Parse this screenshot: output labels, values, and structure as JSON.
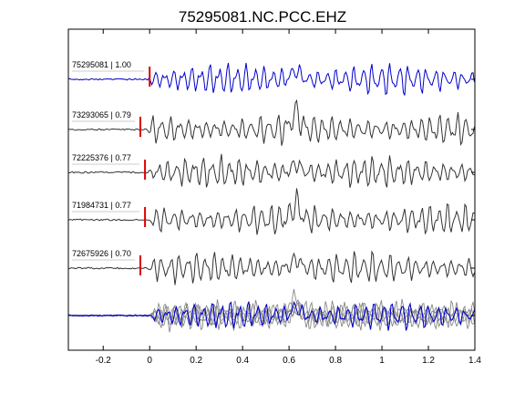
{
  "chart_data": {
    "type": "line",
    "title": "75295081.NC.PCC.EHZ",
    "xlabel": "",
    "ylabel": "",
    "xlim": [
      -0.35,
      1.4
    ],
    "x_ticks": [
      -0.2,
      0,
      0.2,
      0.4,
      0.6,
      0.8,
      1,
      1.2,
      1.4
    ],
    "x_tick_labels": [
      "-0.2",
      "0",
      "0.2",
      "0.4",
      "0.6",
      "0.8",
      "1",
      "1.2",
      "1.4"
    ],
    "grid": false,
    "traces": [
      {
        "label": "75295081 | 1.00",
        "pick_time": 0.0,
        "color": "#0000cc"
      },
      {
        "label": "73293065 | 0.79",
        "pick_time": -0.04,
        "color": "#333333"
      },
      {
        "label": "72225376 | 0.77",
        "pick_time": -0.02,
        "color": "#333333"
      },
      {
        "label": "71984731 | 0.77",
        "pick_time": -0.02,
        "color": "#333333"
      },
      {
        "label": "72675926 | 0.70",
        "pick_time": -0.04,
        "color": "#333333"
      }
    ],
    "stack": {
      "colors": {
        "main": "#0000cc",
        "others": "#888888"
      }
    },
    "pick_marker_color": "#dd0000"
  }
}
